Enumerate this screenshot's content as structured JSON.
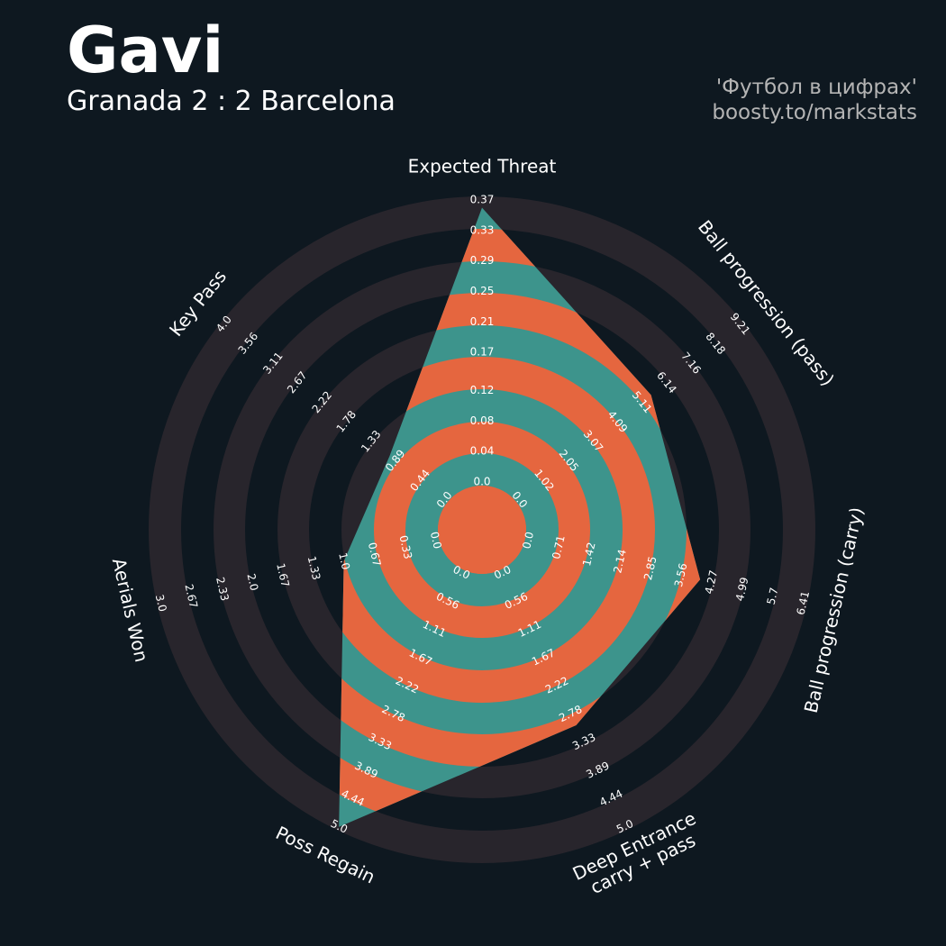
{
  "chart_data": {
    "type": "radar",
    "title": "Gavi",
    "subtitle": "Granada 2 : 2 Barcelona",
    "credits": [
      "'Футбол в цифрах'",
      "boosty.to/markstats"
    ],
    "axes": [
      {
        "name": "Expected Threat",
        "lim": [
          0,
          0.37
        ],
        "ticks": [
          {
            "value": 0,
            "label": "0.0"
          },
          0.04,
          0.08,
          0.12,
          0.17,
          0.21,
          0.25,
          0.29,
          0.33,
          0.37
        ]
      },
      {
        "name": "Ball progression (pass)",
        "lim": [
          0,
          9.21
        ],
        "ticks": [
          {
            "value": 0,
            "label": "0.0"
          },
          1.02,
          2.05,
          3.07,
          4.09,
          5.11,
          6.14,
          7.16,
          8.18,
          9.21
        ]
      },
      {
        "name": "Ball progression (carry)",
        "lim": [
          0,
          6.41
        ],
        "ticks": [
          {
            "value": 0,
            "label": "0.0"
          },
          0.71,
          1.42,
          2.14,
          2.85,
          3.56,
          4.27,
          4.99,
          5.7,
          6.41
        ]
      },
      {
        "name": [
          "Deep Entrance",
          "carry + pass"
        ],
        "lim": [
          0,
          5
        ],
        "ticks": [
          {
            "value": 0,
            "label": "0.0"
          },
          0.56,
          1.11,
          1.67,
          2.22,
          2.78,
          3.33,
          3.89,
          4.44,
          {
            "value": 5,
            "label": "5.0"
          }
        ]
      },
      {
        "name": "Poss Regain",
        "lim": [
          0,
          5
        ],
        "ticks": [
          {
            "value": 0,
            "label": "0.0"
          },
          0.56,
          1.11,
          1.67,
          2.22,
          2.78,
          3.33,
          3.89,
          4.44,
          {
            "value": 5,
            "label": "5.0"
          }
        ]
      },
      {
        "name": "Aerials Won",
        "lim": [
          0,
          3
        ],
        "ticks": [
          {
            "value": 0,
            "label": "0.0"
          },
          0.33,
          0.67,
          {
            "value": 1,
            "label": "1.0"
          },
          1.33,
          1.67,
          {
            "value": 2,
            "label": "2.0"
          },
          2.33,
          2.67,
          {
            "value": 3,
            "label": "3.0"
          }
        ]
      },
      {
        "name": "Key Pass",
        "lim": [
          0,
          4
        ],
        "ticks": [
          {
            "value": 0,
            "label": "0.0"
          },
          0.44,
          0.89,
          1.33,
          1.78,
          2.22,
          2.67,
          3.11,
          3.56,
          {
            "value": 4,
            "label": "4.0"
          }
        ]
      }
    ],
    "values": [
      0.36,
      5.5,
      4.0,
      3.0,
      5.0,
      1.0,
      1.0
    ],
    "fill_colors": [
      "#e5663f",
      "#3d948c"
    ],
    "ring_color": "#28252c",
    "background": "#0e1820"
  }
}
